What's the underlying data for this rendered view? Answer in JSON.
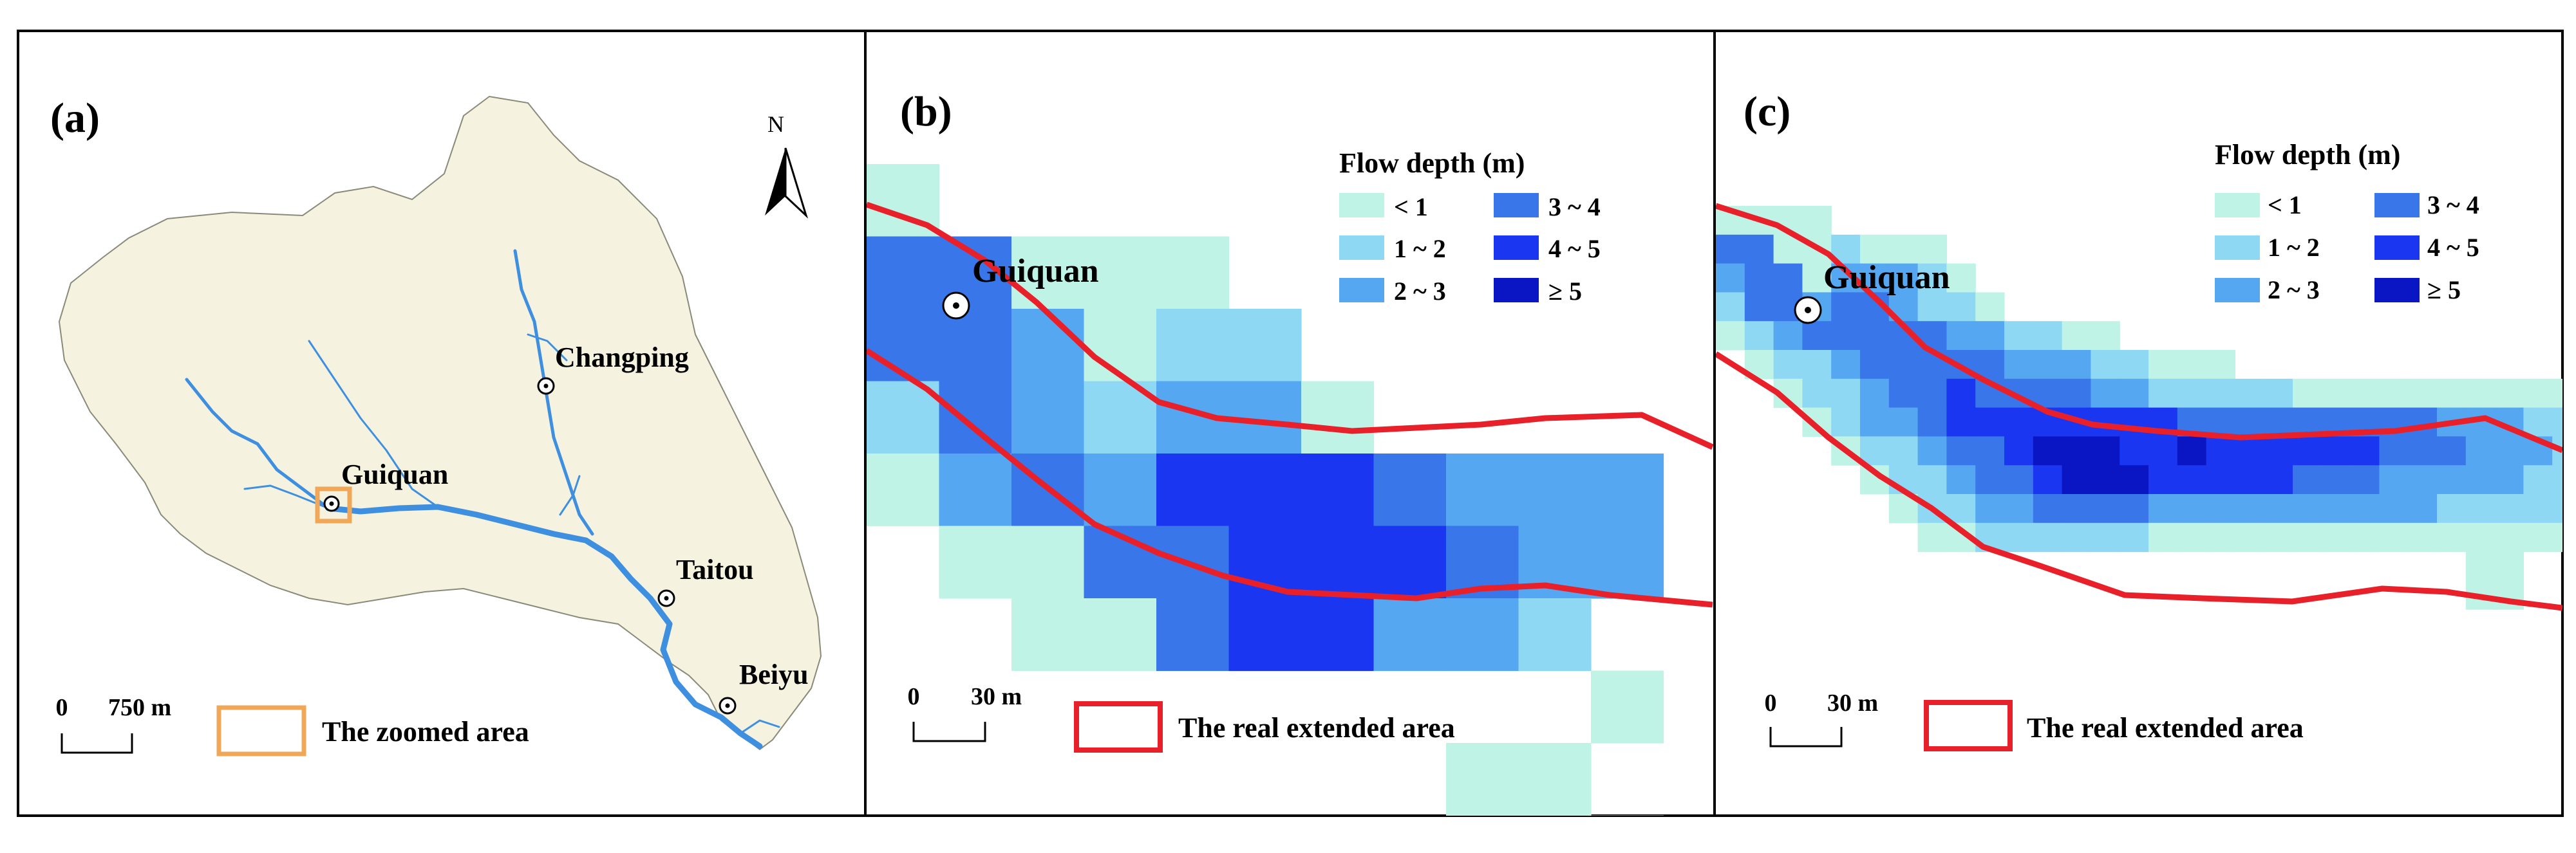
{
  "panels": {
    "a": {
      "label": "(a)",
      "north_label": "N",
      "stations": [
        {
          "name": "Changping"
        },
        {
          "name": "Guiquan"
        },
        {
          "name": "Taitou"
        },
        {
          "name": "Beiyu"
        }
      ],
      "scale": {
        "zero": "0",
        "distance": "750 m"
      },
      "zoom_legend": "The zoomed area"
    },
    "b": {
      "label": "(b)",
      "station": "Guiquan",
      "scale": {
        "zero": "0",
        "distance": "30 m"
      },
      "extent_legend": "The real extended area"
    },
    "c": {
      "label": "(c)",
      "station": "Guiquan",
      "scale": {
        "zero": "0",
        "distance": "30 m"
      },
      "extent_legend": "The real extended area"
    }
  },
  "flow_legend": {
    "title": "Flow depth (m)",
    "classes": [
      {
        "label": "< 1",
        "color": "#bff3e6"
      },
      {
        "label": "1 ~ 2",
        "color": "#8fd8f4"
      },
      {
        "label": "2 ~ 3",
        "color": "#54a7f0"
      },
      {
        "label": "3 ~ 4",
        "color": "#3876ea"
      },
      {
        "label": "4 ~ 5",
        "color": "#1a36f0"
      },
      {
        "label": "≥ 5",
        "color": "#0a16c4"
      }
    ]
  },
  "colors": {
    "watershed": "#f5f3df",
    "river": "#3f8fe0",
    "zoom_box": "#f0a858",
    "extent_line": "#e8202a"
  }
}
